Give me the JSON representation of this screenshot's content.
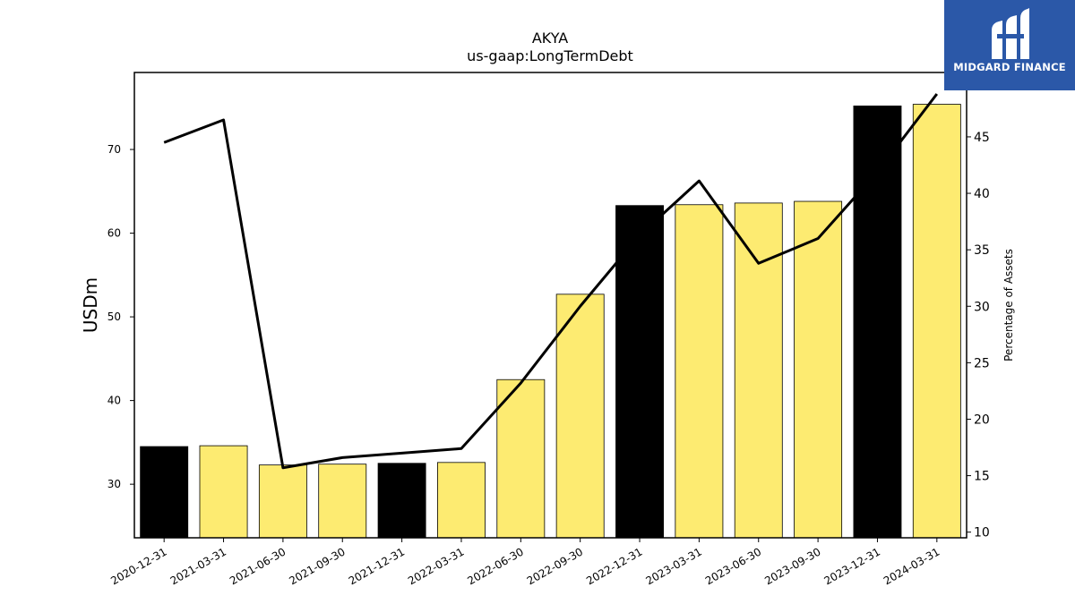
{
  "logo": {
    "text": "MIDGARD FINANCE",
    "icon": "midgard-logo-icon",
    "background": "#2b58a8"
  },
  "colors": {
    "highlight_bar": "#000000",
    "normal_bar": "#fdeb71",
    "line": "#000000"
  },
  "chart_data": {
    "type": "bar",
    "title": "AKYA",
    "subtitle": "us-gaap:LongTermDebt",
    "ylabel": "USDm",
    "y2label": "Percentage of Assets",
    "categories": [
      "2020-12-31",
      "2021-03-31",
      "2021-06-30",
      "2021-09-30",
      "2021-12-31",
      "2022-03-31",
      "2022-06-30",
      "2022-09-30",
      "2022-12-31",
      "2023-03-31",
      "2023-06-30",
      "2023-09-30",
      "2023-12-31",
      "2024-03-31"
    ],
    "series": [
      {
        "type": "bar",
        "values": [
          34.5,
          34.6,
          32.3,
          32.4,
          32.5,
          32.6,
          42.5,
          52.7,
          63.3,
          63.4,
          63.6,
          63.8,
          75.2,
          75.4
        ],
        "highlight": [
          true,
          false,
          false,
          false,
          true,
          false,
          false,
          false,
          true,
          false,
          false,
          false,
          true,
          false
        ]
      },
      {
        "type": "line",
        "axis": "right",
        "values": [
          44.5,
          46.5,
          15.7,
          16.6,
          17.0,
          17.4,
          23.2,
          30.0,
          36.3,
          41.1,
          33.8,
          36.0,
          41.9,
          48.8
        ]
      }
    ],
    "ylim": [
      23.6,
      79.2
    ],
    "y2lim": [
      9.5,
      50.7
    ],
    "yticks": [
      30,
      40,
      50,
      60,
      70
    ],
    "y2ticks": [
      10,
      15,
      20,
      25,
      30,
      35,
      40,
      45
    ],
    "grid": false,
    "legend": "none"
  }
}
